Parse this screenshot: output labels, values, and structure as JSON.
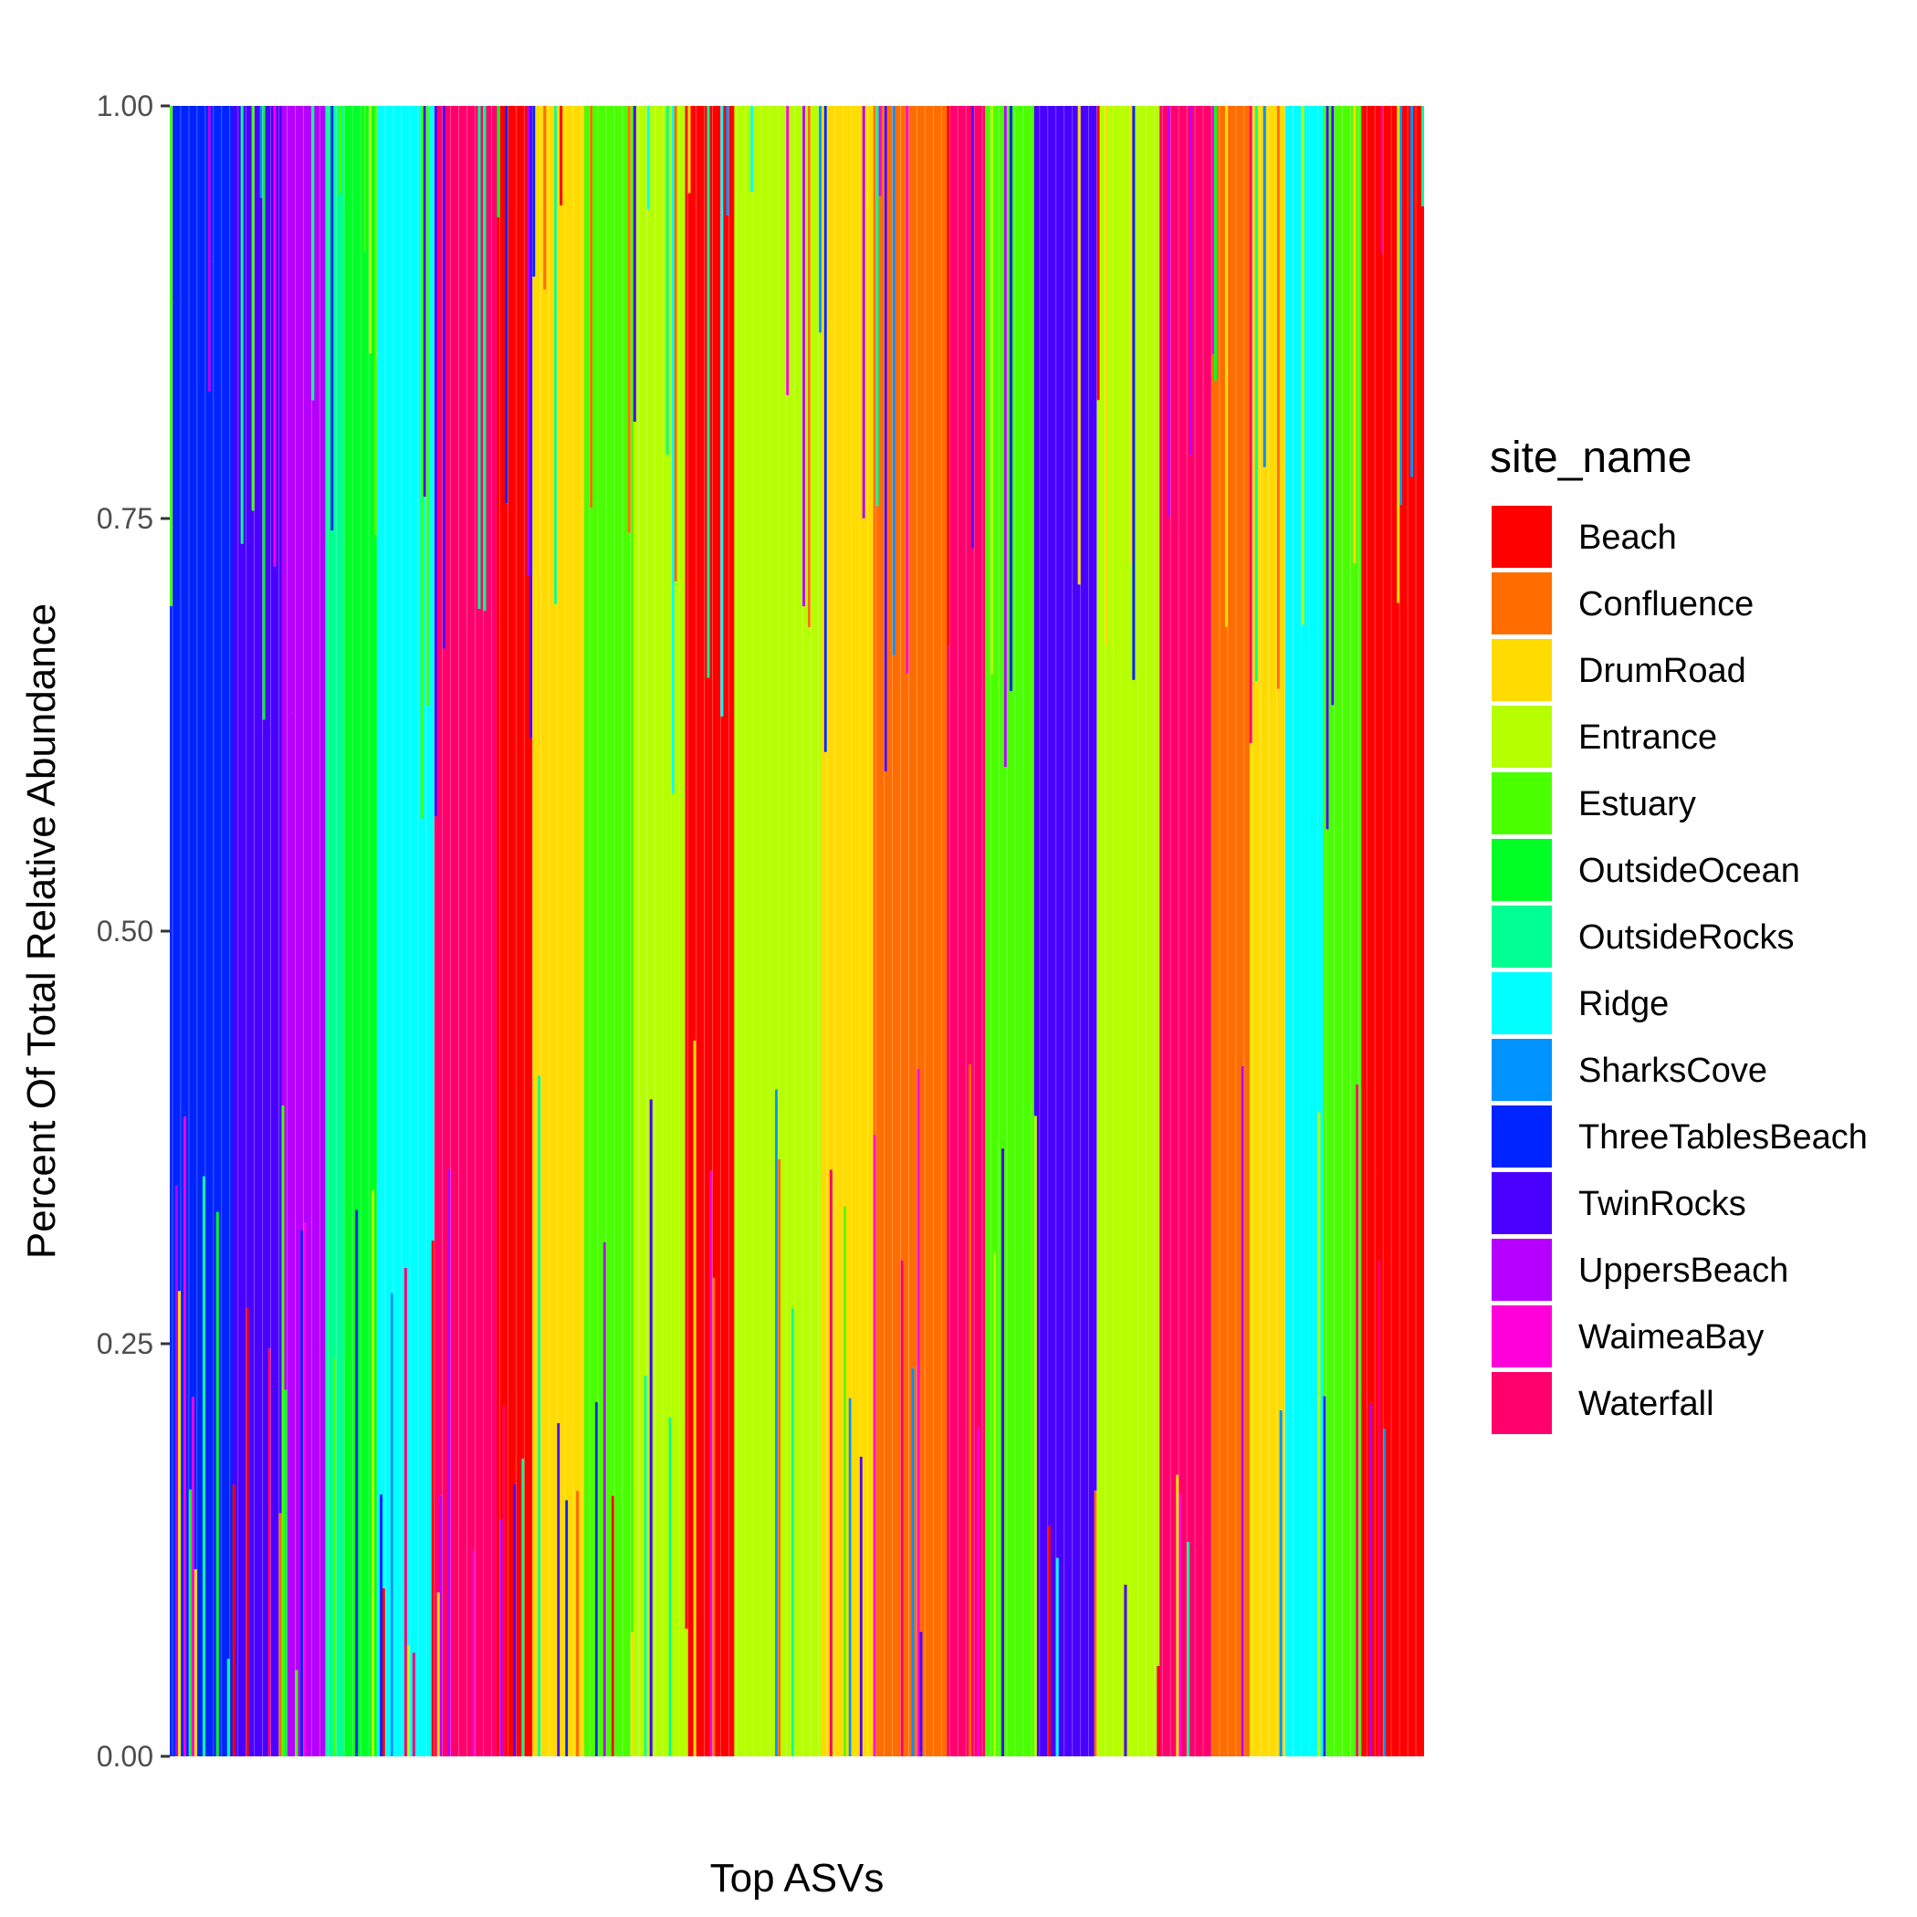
{
  "chart_data": {
    "type": "bar",
    "stacked": true,
    "xlabel": "Top ASVs",
    "ylabel": "Percent Of Total Relative Abundance",
    "ylim": [
      0,
      1
    ],
    "yticks": [
      "0.00",
      "0.25",
      "0.50",
      "0.75",
      "1.00"
    ],
    "ytick_values": [
      0,
      0.25,
      0.5,
      0.75,
      1
    ],
    "grid": false,
    "legend": {
      "title": "site_name",
      "placement": "right",
      "entries": [
        {
          "name": "Beach",
          "color": "#FF0000"
        },
        {
          "name": "Confluence",
          "color": "#FF6D00"
        },
        {
          "name": "DrumRoad",
          "color": "#FFDB00"
        },
        {
          "name": "Entrance",
          "color": "#B6FF00"
        },
        {
          "name": "Estuary",
          "color": "#49FF00"
        },
        {
          "name": "OutsideOcean",
          "color": "#00FF24"
        },
        {
          "name": "OutsideRocks",
          "color": "#00FF92"
        },
        {
          "name": "Ridge",
          "color": "#00FFFF"
        },
        {
          "name": "SharksCove",
          "color": "#0092FF"
        },
        {
          "name": "ThreeTablesBeach",
          "color": "#0024FF"
        },
        {
          "name": "TwinRocks",
          "color": "#4900FF"
        },
        {
          "name": "UppersBeach",
          "color": "#B600FF"
        },
        {
          "name": "WaimeaBay",
          "color": "#FF00DB"
        },
        {
          "name": "Waterfall",
          "color": "#FF006D"
        }
      ]
    },
    "dominant_site_by_x_segment": [
      {
        "from": 0.0,
        "to": 0.05,
        "site": "ThreeTablesBeach"
      },
      {
        "from": 0.05,
        "to": 0.09,
        "site": "TwinRocks"
      },
      {
        "from": 0.09,
        "to": 0.125,
        "site": "UppersBeach"
      },
      {
        "from": 0.125,
        "to": 0.14,
        "site": "OutsideRocks"
      },
      {
        "from": 0.14,
        "to": 0.165,
        "site": "OutsideOcean"
      },
      {
        "from": 0.165,
        "to": 0.21,
        "site": "Ridge"
      },
      {
        "from": 0.21,
        "to": 0.26,
        "site": "Waterfall"
      },
      {
        "from": 0.26,
        "to": 0.29,
        "site": "Beach"
      },
      {
        "from": 0.29,
        "to": 0.33,
        "site": "DrumRoad"
      },
      {
        "from": 0.33,
        "to": 0.37,
        "site": "Estuary"
      },
      {
        "from": 0.37,
        "to": 0.41,
        "site": "Entrance"
      },
      {
        "from": 0.41,
        "to": 0.45,
        "site": "Beach"
      },
      {
        "from": 0.45,
        "to": 0.52,
        "site": "Entrance"
      },
      {
        "from": 0.52,
        "to": 0.56,
        "site": "DrumRoad"
      },
      {
        "from": 0.56,
        "to": 0.62,
        "site": "Confluence"
      },
      {
        "from": 0.62,
        "to": 0.65,
        "site": "Waterfall"
      },
      {
        "from": 0.65,
        "to": 0.69,
        "site": "Estuary"
      },
      {
        "from": 0.69,
        "to": 0.74,
        "site": "TwinRocks"
      },
      {
        "from": 0.74,
        "to": 0.79,
        "site": "Entrance"
      },
      {
        "from": 0.79,
        "to": 0.83,
        "site": "Waterfall"
      },
      {
        "from": 0.83,
        "to": 0.86,
        "site": "Confluence"
      },
      {
        "from": 0.86,
        "to": 0.89,
        "site": "DrumRoad"
      },
      {
        "from": 0.89,
        "to": 0.92,
        "site": "Ridge"
      },
      {
        "from": 0.92,
        "to": 0.95,
        "site": "Estuary"
      },
      {
        "from": 0.95,
        "to": 1.0,
        "site": "Beach"
      }
    ]
  }
}
